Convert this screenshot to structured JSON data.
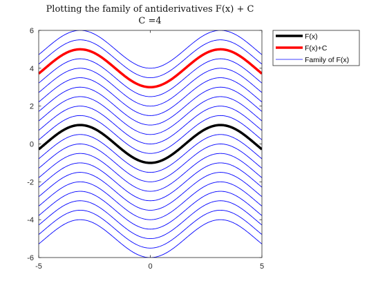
{
  "chart_data": {
    "type": "line",
    "title": "Plotting the family of antiderivatives F(x) + C",
    "subtitle": "C =4",
    "xlabel": "",
    "ylabel": "",
    "xlim": [
      -5,
      5
    ],
    "ylim": [
      -6,
      6
    ],
    "x_ticks": [
      -5,
      0,
      5
    ],
    "y_ticks": [
      -6,
      -4,
      -2,
      0,
      2,
      4,
      6
    ],
    "grid": false,
    "legend_position": "outside-top-right",
    "function": "-cos(x)",
    "family_offsets": [
      -5,
      -4.5,
      -4,
      -3.5,
      -3,
      -2.5,
      -2,
      -1.5,
      -1,
      -0.5,
      0,
      0.5,
      1,
      1.5,
      2,
      2.5,
      3,
      3.5,
      4,
      4.5,
      5
    ],
    "highlight_offset": 4,
    "sample_x": [
      -5,
      -4,
      -3,
      -2,
      -1,
      0,
      1,
      2,
      3,
      4,
      5
    ],
    "series": [
      {
        "name": "F(x)",
        "color": "#000000",
        "values": [
          -0.28,
          0.65,
          0.99,
          0.42,
          -0.54,
          -1.0,
          -0.54,
          0.42,
          0.99,
          0.65,
          -0.28
        ]
      },
      {
        "name": "F(x)+C",
        "color": "#ff0000",
        "values": [
          3.72,
          4.65,
          4.99,
          4.42,
          3.46,
          3.0,
          3.46,
          4.42,
          4.99,
          4.65,
          3.72
        ]
      },
      {
        "name": "Family of F(x)",
        "color": "#0000ff"
      }
    ]
  }
}
